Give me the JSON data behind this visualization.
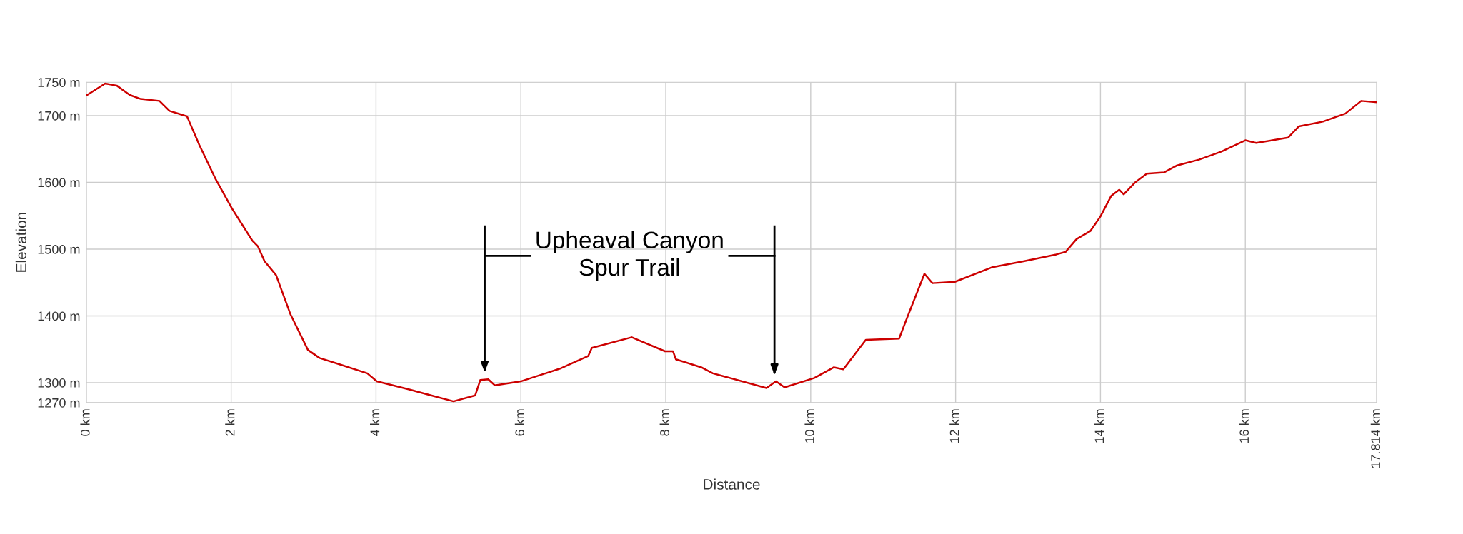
{
  "chart_data": {
    "type": "line",
    "xlabel": "Distance",
    "ylabel": "Elevation",
    "annotations": [
      {
        "text": "Upheaval Canyon\nSpur Trail",
        "x": 5.5,
        "y": 1490
      }
    ],
    "ref_lines": [
      {
        "axis": "x",
        "value": 5.5
      },
      {
        "axis": "x",
        "value": 9.5
      }
    ],
    "x": [
      0,
      0.26,
      0.42,
      0.6,
      0.75,
      1.01,
      1.15,
      1.39,
      1.56,
      1.78,
      2.01,
      2.29,
      2.37,
      2.46,
      2.62,
      2.82,
      3.06,
      3.22,
      3.48,
      3.88,
      4.01,
      4.45,
      4.76,
      5.07,
      5.37,
      5.44,
      5.55,
      5.64,
      6.0,
      6.54,
      6.93,
      6.98,
      7.53,
      7.99,
      8.1,
      8.14,
      8.49,
      8.65,
      9.39,
      9.52,
      9.64,
      10.05,
      10.32,
      10.45,
      10.76,
      11.22,
      11.33,
      11.57,
      11.68,
      11.99,
      12.51,
      12.95,
      13.39,
      13.52,
      13.67,
      13.86,
      14.0,
      14.15,
      14.26,
      14.32,
      14.48,
      14.64,
      14.88,
      15.05,
      15.36,
      15.67,
      16.0,
      16.15,
      16.59,
      16.74,
      17.07,
      17.38,
      17.6,
      17.814
    ],
    "series": [
      {
        "color": "#cc0000",
        "values": [
          1730,
          1748,
          1745,
          1731,
          1725,
          1722,
          1707,
          1699,
          1656,
          1606,
          1561,
          1513,
          1504,
          1482,
          1461,
          1402,
          1349,
          1337,
          1328,
          1314,
          1302,
          1290,
          1281,
          1272,
          1281,
          1304,
          1305,
          1296,
          1302,
          1321,
          1340,
          1352,
          1368,
          1347,
          1347,
          1335,
          1323,
          1314,
          1292,
          1302,
          1293,
          1307,
          1323,
          1320,
          1364,
          1366,
          1397,
          1463,
          1449,
          1451,
          1473,
          1482,
          1492,
          1496,
          1515,
          1527,
          1549,
          1580,
          1589,
          1582,
          1600,
          1613,
          1615,
          1625,
          1634,
          1646,
          1663,
          1659,
          1667,
          1684,
          1691,
          1703,
          1722,
          1720
        ]
      }
    ],
    "xlim": [
      0,
      17.814
    ],
    "xticks": [
      {
        "value": 0,
        "label": "0 km"
      },
      {
        "value": 2,
        "label": "2 km"
      },
      {
        "value": 4,
        "label": "4 km"
      },
      {
        "value": 6,
        "label": "6 km"
      },
      {
        "value": 8,
        "label": "8 km"
      },
      {
        "value": 10,
        "label": "10 km"
      },
      {
        "value": 12,
        "label": "12 km"
      },
      {
        "value": 14,
        "label": "14 km"
      },
      {
        "value": 16,
        "label": "16 km"
      },
      {
        "value": 17.814,
        "label": "17.814 km"
      }
    ],
    "ylim": [
      1270,
      1750
    ],
    "yticks": [
      {
        "value": 1270,
        "label": "1270 m"
      },
      {
        "value": 1300,
        "label": "1300 m"
      },
      {
        "value": 1400,
        "label": "1400 m"
      },
      {
        "value": 1500,
        "label": "1500 m"
      },
      {
        "value": 1600,
        "label": "1600 m"
      },
      {
        "value": 1700,
        "label": "1700 m"
      },
      {
        "value": 1750,
        "label": "1750 m"
      }
    ],
    "grid": true,
    "marker": "none",
    "line_style": "solid"
  }
}
